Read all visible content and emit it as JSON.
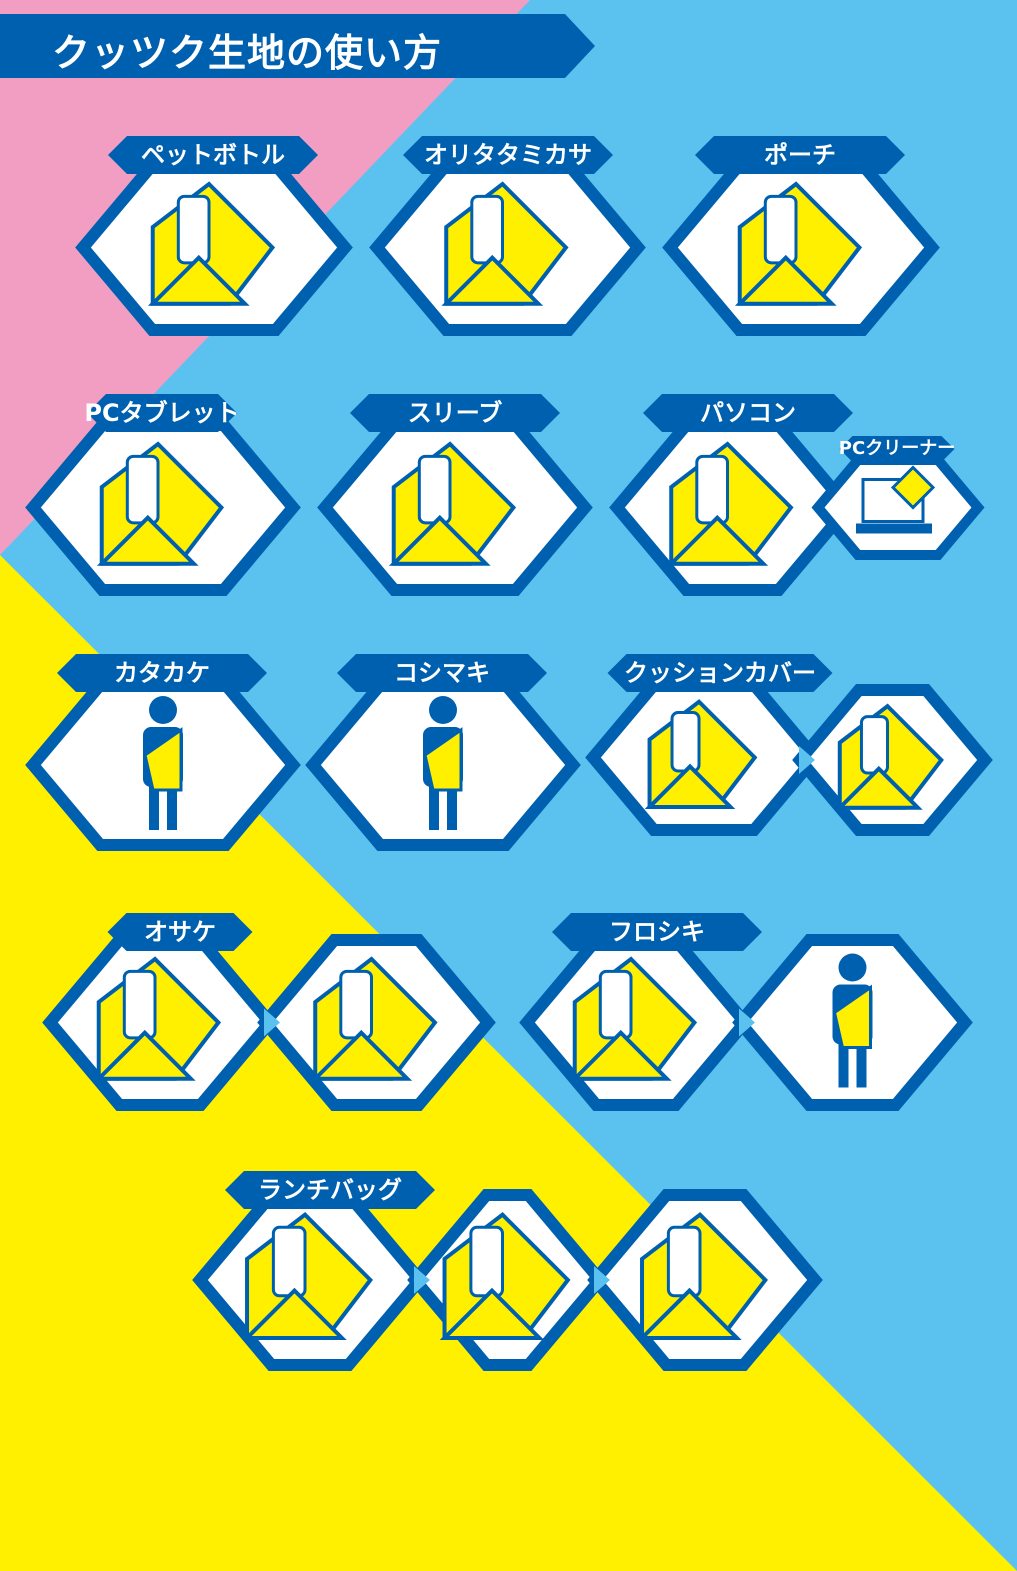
{
  "title": "クッツク生地の使い方",
  "colors": {
    "dark_blue": "#0060b0",
    "light_blue": "#5bc2f0",
    "pink": "#f19ec2",
    "yellow": "#fff000",
    "white": "#ffffff"
  },
  "items": [
    {
      "label": "ペットボトル",
      "icon": "pet-bottle-icon"
    },
    {
      "label": "オリタタミカサ",
      "icon": "folding-umbrella-icon"
    },
    {
      "label": "ポーチ",
      "icon": "pouch-icon"
    },
    {
      "label": "PCタブレット",
      "icon": "tablet-icon"
    },
    {
      "label": "スリーブ",
      "icon": "cup-sleeve-icon"
    },
    {
      "label": "パソコン",
      "icon": "laptop-wrap-icon",
      "sub": {
        "label": "PCクリーナー",
        "icon": "pc-cleaner-icon"
      },
      "pc_text": "PC"
    },
    {
      "label": "カタカケ",
      "icon": "shawl-icon"
    },
    {
      "label": "コシマキ",
      "icon": "waist-wrap-icon"
    },
    {
      "label": "クッションカバー",
      "icon": "cushion-cover-icon"
    },
    {
      "label": "オサケ",
      "icon": "bottle-wrap-icon"
    },
    {
      "label": "フロシキ",
      "icon": "furoshiki-icon",
      "pc_text": "PC"
    },
    {
      "label": "ランチバッグ",
      "icon": "lunch-bag-icon"
    }
  ]
}
